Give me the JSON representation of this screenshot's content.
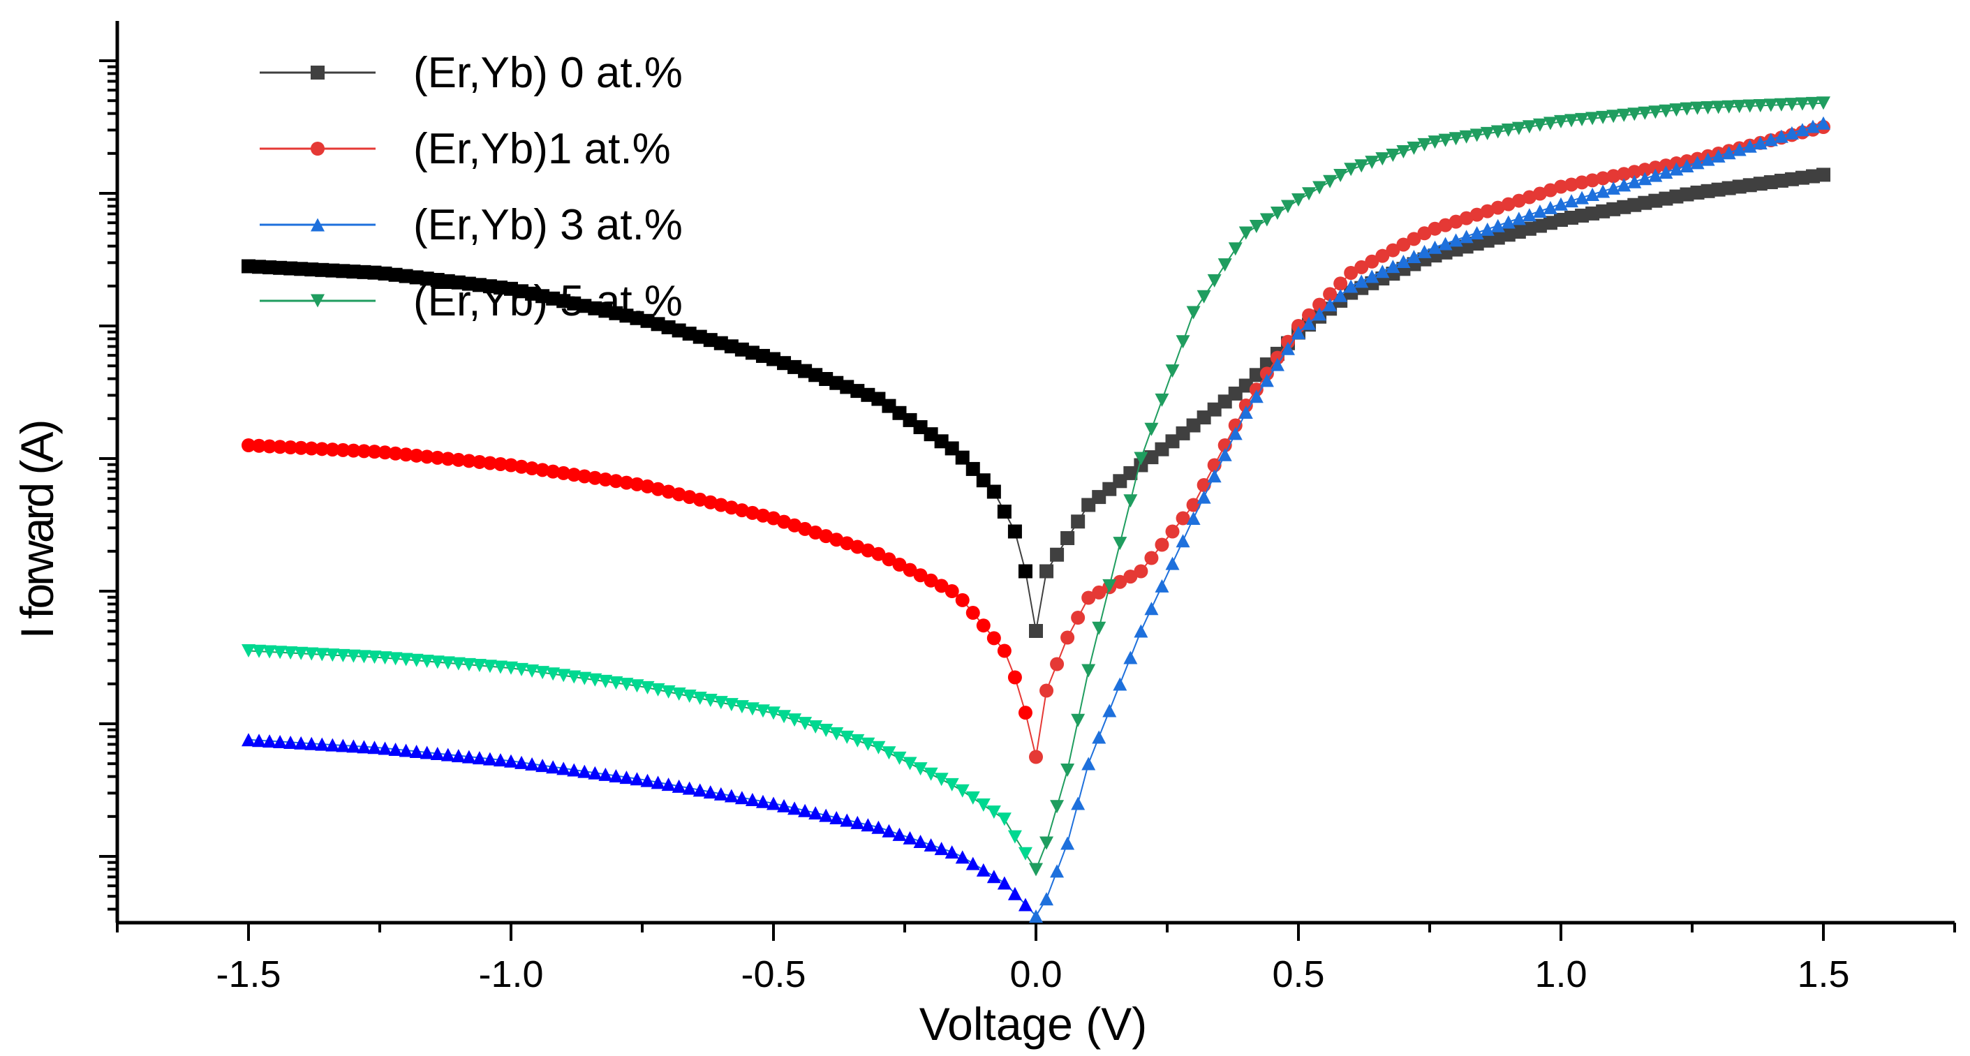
{
  "chart_data": {
    "type": "line",
    "xlabel": "Voltage (V)",
    "ylabel": "I forward (A)",
    "xlim": [
      -1.75,
      1.75
    ],
    "ylim": [
      -6.5,
      0.3
    ],
    "yscale": "log10 (tick labels not shown)",
    "x_ticks": [
      -1.5,
      -1.0,
      -0.5,
      0.0,
      0.5,
      1.0,
      1.5
    ],
    "x_tick_labels": [
      "-1.5",
      "-1.0",
      "-0.5",
      "0.0",
      "0.5",
      "1.0",
      "1.5"
    ],
    "legend_position": "top-left",
    "series": [
      {
        "name": "(Er,Yb) 0 at.%",
        "marker": "square",
        "color": "#000000",
        "forward_color": "#404040",
        "points": [
          [
            -1.5,
            -1.55
          ],
          [
            -1.25,
            -1.6
          ],
          [
            -1.0,
            -1.72
          ],
          [
            -0.75,
            -1.95
          ],
          [
            -0.5,
            -2.25
          ],
          [
            -0.3,
            -2.55
          ],
          [
            -0.15,
            -2.95
          ],
          [
            -0.08,
            -3.25
          ],
          [
            -0.04,
            -3.55
          ],
          [
            -0.02,
            -3.85
          ],
          [
            0.0,
            -4.3
          ],
          [
            0.02,
            -3.85
          ],
          [
            0.06,
            -3.6
          ],
          [
            0.1,
            -3.35
          ],
          [
            0.2,
            -3.05
          ],
          [
            0.3,
            -2.75
          ],
          [
            0.4,
            -2.45
          ],
          [
            0.5,
            -2.05
          ],
          [
            0.6,
            -1.75
          ],
          [
            0.75,
            -1.48
          ],
          [
            1.0,
            -1.2
          ],
          [
            1.25,
            -1.0
          ],
          [
            1.5,
            -0.86
          ]
        ]
      },
      {
        "name": "(Er,Yb)1 at.%",
        "marker": "circle",
        "color": "#ff0000",
        "forward_color": "#e53935",
        "points": [
          [
            -1.5,
            -2.9
          ],
          [
            -1.25,
            -2.95
          ],
          [
            -1.0,
            -3.05
          ],
          [
            -0.75,
            -3.2
          ],
          [
            -0.5,
            -3.45
          ],
          [
            -0.3,
            -3.72
          ],
          [
            -0.15,
            -4.02
          ],
          [
            -0.06,
            -4.45
          ],
          [
            -0.03,
            -4.75
          ],
          [
            0.0,
            -5.25
          ],
          [
            0.02,
            -4.75
          ],
          [
            0.06,
            -4.35
          ],
          [
            0.1,
            -4.05
          ],
          [
            0.2,
            -3.85
          ],
          [
            0.3,
            -3.35
          ],
          [
            0.4,
            -2.6
          ],
          [
            0.5,
            -2.0
          ],
          [
            0.6,
            -1.6
          ],
          [
            0.75,
            -1.28
          ],
          [
            1.0,
            -0.95
          ],
          [
            1.25,
            -0.75
          ],
          [
            1.5,
            -0.5
          ]
        ]
      },
      {
        "name": "(Er,Yb) 3 at.%",
        "marker": "triangle-up",
        "color": "#0000ff",
        "forward_color": "#1e70dc",
        "points": [
          [
            -1.5,
            -5.12
          ],
          [
            -1.25,
            -5.18
          ],
          [
            -1.0,
            -5.28
          ],
          [
            -0.75,
            -5.42
          ],
          [
            -0.5,
            -5.6
          ],
          [
            -0.3,
            -5.78
          ],
          [
            -0.15,
            -5.98
          ],
          [
            -0.06,
            -6.2
          ],
          [
            -0.03,
            -6.32
          ],
          [
            0.0,
            -6.45
          ],
          [
            0.02,
            -6.32
          ],
          [
            0.06,
            -5.9
          ],
          [
            0.1,
            -5.3
          ],
          [
            0.2,
            -4.3
          ],
          [
            0.3,
            -3.45
          ],
          [
            0.4,
            -2.65
          ],
          [
            0.5,
            -2.05
          ],
          [
            0.6,
            -1.7
          ],
          [
            0.75,
            -1.42
          ],
          [
            1.0,
            -1.08
          ],
          [
            1.25,
            -0.78
          ],
          [
            1.5,
            -0.47
          ]
        ]
      },
      {
        "name": "(Er,Yb) 5 at.%",
        "marker": "triangle-down",
        "color": "#00d890",
        "forward_color": "#1f9d5f",
        "points": [
          [
            -1.5,
            -4.45
          ],
          [
            -1.25,
            -4.5
          ],
          [
            -1.0,
            -4.58
          ],
          [
            -0.75,
            -4.72
          ],
          [
            -0.5,
            -4.92
          ],
          [
            -0.3,
            -5.18
          ],
          [
            -0.15,
            -5.48
          ],
          [
            -0.06,
            -5.72
          ],
          [
            -0.03,
            -5.92
          ],
          [
            0.0,
            -6.1
          ],
          [
            0.02,
            -5.9
          ],
          [
            0.06,
            -5.35
          ],
          [
            0.1,
            -4.6
          ],
          [
            0.15,
            -3.8
          ],
          [
            0.2,
            -3.0
          ],
          [
            0.3,
            -1.9
          ],
          [
            0.4,
            -1.3
          ],
          [
            0.5,
            -1.05
          ],
          [
            0.6,
            -0.82
          ],
          [
            0.75,
            -0.62
          ],
          [
            1.0,
            -0.46
          ],
          [
            1.25,
            -0.36
          ],
          [
            1.5,
            -0.32
          ]
        ]
      }
    ]
  }
}
